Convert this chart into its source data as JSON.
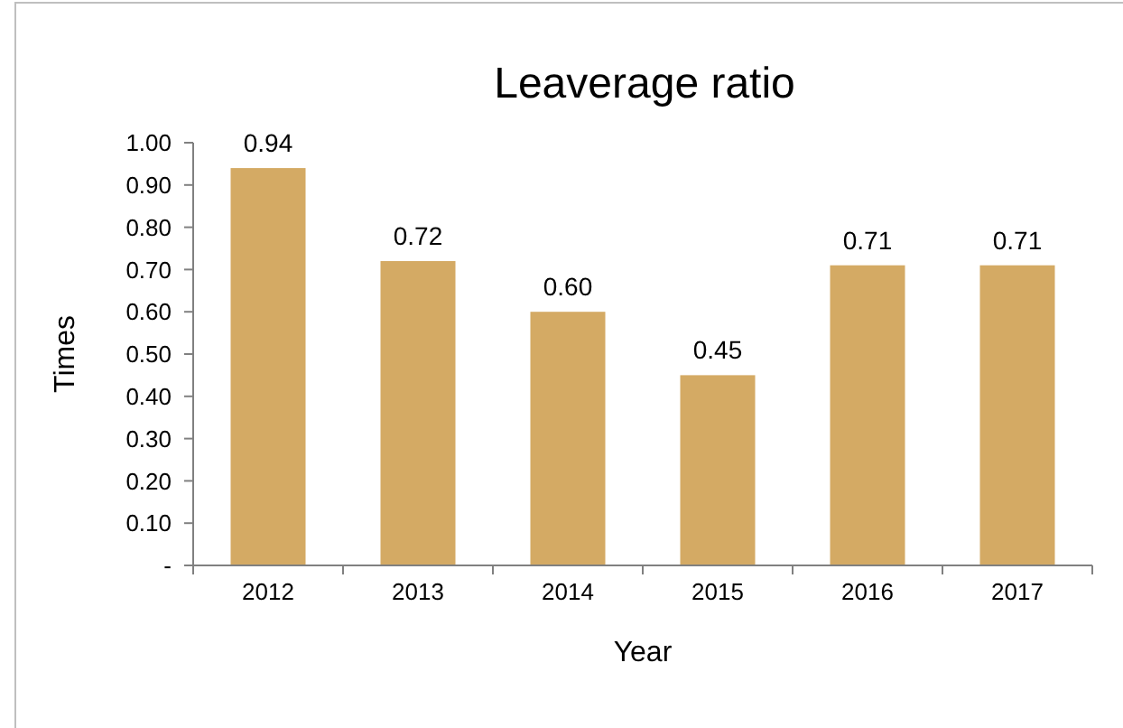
{
  "chart_data": {
    "type": "bar",
    "title": "Leaverage ratio",
    "xlabel": "Year",
    "ylabel": "Times",
    "categories": [
      "2012",
      "2013",
      "2014",
      "2015",
      "2016",
      "2017"
    ],
    "values": [
      0.94,
      0.72,
      0.6,
      0.45,
      0.71,
      0.71
    ],
    "value_labels": [
      "0.94",
      "0.72",
      "0.60",
      "0.45",
      "0.71",
      "0.71"
    ],
    "color": "#d4aa64",
    "ylim": [
      0,
      1.0
    ],
    "yticks": [
      {
        "value": 0,
        "label": "-"
      },
      {
        "value": 0.1,
        "label": "0.10"
      },
      {
        "value": 0.2,
        "label": "0.20"
      },
      {
        "value": 0.3,
        "label": "0.30"
      },
      {
        "value": 0.4,
        "label": "0.40"
      },
      {
        "value": 0.5,
        "label": "0.50"
      },
      {
        "value": 0.6,
        "label": "0.60"
      },
      {
        "value": 0.7,
        "label": "0.70"
      },
      {
        "value": 0.8,
        "label": "0.80"
      },
      {
        "value": 0.9,
        "label": "0.90"
      },
      {
        "value": 1.0,
        "label": "1.00"
      }
    ],
    "grid": false
  }
}
